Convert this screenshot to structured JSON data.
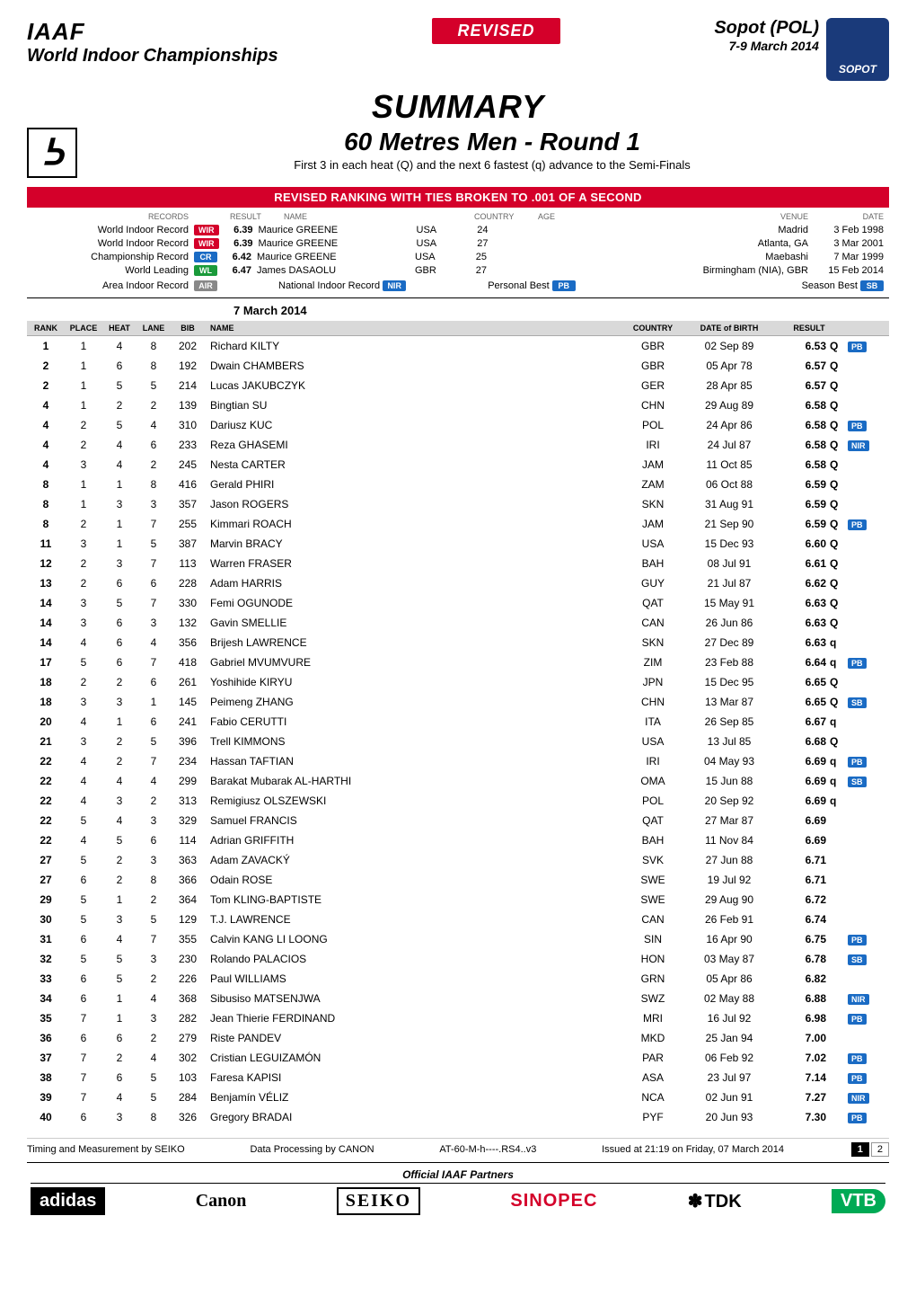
{
  "header": {
    "org": "IAAF",
    "event_series": "World Indoor Championships",
    "revised": "REVISED",
    "location": "Sopot (POL)",
    "dates": "7-9 March 2014",
    "logo_text": "SOPOT"
  },
  "title": "SUMMARY",
  "event": {
    "name": "60 Metres Men - Round 1",
    "note": "First 3 in each heat (Q) and the next 6 fastest (q) advance to the Semi-Finals"
  },
  "banner": "REVISED RANKING WITH TIES BROKEN TO .001 OF A SECOND",
  "records": {
    "hdr_records": "RECORDS",
    "hdr_result": "RESULT",
    "hdr_name": "NAME",
    "hdr_country": "COUNTRY",
    "hdr_age": "AGE",
    "hdr_venue": "VENUE",
    "hdr_date": "DATE",
    "lines": [
      {
        "label": "World Indoor Record",
        "pill": "WIR",
        "pill_class": "pill-red",
        "result": "6.39",
        "name": "Maurice GREENE",
        "ctry": "USA",
        "age": "24",
        "venue": "Madrid",
        "date": "3 Feb 1998"
      },
      {
        "label": "World Indoor Record",
        "pill": "WIR",
        "pill_class": "pill-red",
        "result": "6.39",
        "name": "Maurice GREENE",
        "ctry": "USA",
        "age": "27",
        "venue": "Atlanta, GA",
        "date": "3 Mar 2001"
      },
      {
        "label": "Championship Record",
        "pill": "CR",
        "pill_class": "pill-blue",
        "result": "6.42",
        "name": "Maurice GREENE",
        "ctry": "USA",
        "age": "25",
        "venue": "Maebashi",
        "date": "7 Mar 1999"
      },
      {
        "label": "World Leading",
        "pill": "WL",
        "pill_class": "pill-green",
        "result": "6.47",
        "name": "James DASAOLU",
        "ctry": "GBR",
        "age": "27",
        "venue": "Birmingham (NIA), GBR",
        "date": "15 Feb 2014"
      }
    ],
    "footer": {
      "air_label": "Area Indoor Record",
      "air_pill": "AIR",
      "nir_label": "National Indoor Record",
      "nir_pill": "NIR",
      "pb_label": "Personal Best",
      "pb_pill": "PB",
      "sb_label": "Season Best",
      "sb_pill": "SB"
    }
  },
  "comp_date": "7 March 2014",
  "cols": {
    "rank": "RANK",
    "place": "PLACE",
    "heat": "HEAT",
    "lane": "LANE",
    "bib": "BIB",
    "name": "NAME",
    "country": "COUNTRY",
    "dob": "DATE of BIRTH",
    "result": "RESULT"
  },
  "rows": [
    {
      "rank": "1",
      "place": "1",
      "heat": "4",
      "lane": "8",
      "bib": "202",
      "name": "Richard KILTY",
      "ctry": "GBR",
      "dob": "02 Sep 89",
      "res": "6.53",
      "q": "Q",
      "badge": "PB"
    },
    {
      "rank": "2",
      "place": "1",
      "heat": "6",
      "lane": "8",
      "bib": "192",
      "name": "Dwain CHAMBERS",
      "ctry": "GBR",
      "dob": "05 Apr 78",
      "res": "6.57",
      "q": "Q",
      "badge": ""
    },
    {
      "rank": "2",
      "place": "1",
      "heat": "5",
      "lane": "5",
      "bib": "214",
      "name": "Lucas JAKUBCZYK",
      "ctry": "GER",
      "dob": "28 Apr 85",
      "res": "6.57",
      "q": "Q",
      "badge": ""
    },
    {
      "rank": "4",
      "place": "1",
      "heat": "2",
      "lane": "2",
      "bib": "139",
      "name": "Bingtian SU",
      "ctry": "CHN",
      "dob": "29 Aug 89",
      "res": "6.58",
      "q": "Q",
      "badge": ""
    },
    {
      "rank": "4",
      "place": "2",
      "heat": "5",
      "lane": "4",
      "bib": "310",
      "name": "Dariusz KUC",
      "ctry": "POL",
      "dob": "24 Apr 86",
      "res": "6.58",
      "q": "Q",
      "badge": "PB"
    },
    {
      "rank": "4",
      "place": "2",
      "heat": "4",
      "lane": "6",
      "bib": "233",
      "name": "Reza GHASEMI",
      "ctry": "IRI",
      "dob": "24 Jul 87",
      "res": "6.58",
      "q": "Q",
      "badge": "NIR"
    },
    {
      "rank": "4",
      "place": "3",
      "heat": "4",
      "lane": "2",
      "bib": "245",
      "name": "Nesta CARTER",
      "ctry": "JAM",
      "dob": "11 Oct 85",
      "res": "6.58",
      "q": "Q",
      "badge": ""
    },
    {
      "rank": "8",
      "place": "1",
      "heat": "1",
      "lane": "8",
      "bib": "416",
      "name": "Gerald PHIRI",
      "ctry": "ZAM",
      "dob": "06 Oct 88",
      "res": "6.59",
      "q": "Q",
      "badge": ""
    },
    {
      "rank": "8",
      "place": "1",
      "heat": "3",
      "lane": "3",
      "bib": "357",
      "name": "Jason ROGERS",
      "ctry": "SKN",
      "dob": "31 Aug 91",
      "res": "6.59",
      "q": "Q",
      "badge": ""
    },
    {
      "rank": "8",
      "place": "2",
      "heat": "1",
      "lane": "7",
      "bib": "255",
      "name": "Kimmari ROACH",
      "ctry": "JAM",
      "dob": "21 Sep 90",
      "res": "6.59",
      "q": "Q",
      "badge": "PB"
    },
    {
      "rank": "11",
      "place": "3",
      "heat": "1",
      "lane": "5",
      "bib": "387",
      "name": "Marvin BRACY",
      "ctry": "USA",
      "dob": "15 Dec 93",
      "res": "6.60",
      "q": "Q",
      "badge": ""
    },
    {
      "rank": "12",
      "place": "2",
      "heat": "3",
      "lane": "7",
      "bib": "113",
      "name": "Warren FRASER",
      "ctry": "BAH",
      "dob": "08 Jul 91",
      "res": "6.61",
      "q": "Q",
      "badge": ""
    },
    {
      "rank": "13",
      "place": "2",
      "heat": "6",
      "lane": "6",
      "bib": "228",
      "name": "Adam HARRIS",
      "ctry": "GUY",
      "dob": "21 Jul 87",
      "res": "6.62",
      "q": "Q",
      "badge": ""
    },
    {
      "rank": "14",
      "place": "3",
      "heat": "5",
      "lane": "7",
      "bib": "330",
      "name": "Femi OGUNODE",
      "ctry": "QAT",
      "dob": "15 May 91",
      "res": "6.63",
      "q": "Q",
      "badge": ""
    },
    {
      "rank": "14",
      "place": "3",
      "heat": "6",
      "lane": "3",
      "bib": "132",
      "name": "Gavin SMELLIE",
      "ctry": "CAN",
      "dob": "26 Jun 86",
      "res": "6.63",
      "q": "Q",
      "badge": ""
    },
    {
      "rank": "14",
      "place": "4",
      "heat": "6",
      "lane": "4",
      "bib": "356",
      "name": "Brijesh LAWRENCE",
      "ctry": "SKN",
      "dob": "27 Dec 89",
      "res": "6.63",
      "q": "q",
      "badge": ""
    },
    {
      "rank": "17",
      "place": "5",
      "heat": "6",
      "lane": "7",
      "bib": "418",
      "name": "Gabriel MVUMVURE",
      "ctry": "ZIM",
      "dob": "23 Feb 88",
      "res": "6.64",
      "q": "q",
      "badge": "PB"
    },
    {
      "rank": "18",
      "place": "2",
      "heat": "2",
      "lane": "6",
      "bib": "261",
      "name": "Yoshihide KIRYU",
      "ctry": "JPN",
      "dob": "15 Dec 95",
      "res": "6.65",
      "q": "Q",
      "badge": ""
    },
    {
      "rank": "18",
      "place": "3",
      "heat": "3",
      "lane": "1",
      "bib": "145",
      "name": "Peimeng ZHANG",
      "ctry": "CHN",
      "dob": "13 Mar 87",
      "res": "6.65",
      "q": "Q",
      "badge": "SB"
    },
    {
      "rank": "20",
      "place": "4",
      "heat": "1",
      "lane": "6",
      "bib": "241",
      "name": "Fabio CERUTTI",
      "ctry": "ITA",
      "dob": "26 Sep 85",
      "res": "6.67",
      "q": "q",
      "badge": ""
    },
    {
      "rank": "21",
      "place": "3",
      "heat": "2",
      "lane": "5",
      "bib": "396",
      "name": "Trell KIMMONS",
      "ctry": "USA",
      "dob": "13 Jul 85",
      "res": "6.68",
      "q": "Q",
      "badge": ""
    },
    {
      "rank": "22",
      "place": "4",
      "heat": "2",
      "lane": "7",
      "bib": "234",
      "name": "Hassan TAFTIAN",
      "ctry": "IRI",
      "dob": "04 May 93",
      "res": "6.69",
      "q": "q",
      "badge": "PB"
    },
    {
      "rank": "22",
      "place": "4",
      "heat": "4",
      "lane": "4",
      "bib": "299",
      "name": "Barakat Mubarak AL-HARTHI",
      "ctry": "OMA",
      "dob": "15 Jun 88",
      "res": "6.69",
      "q": "q",
      "badge": "SB"
    },
    {
      "rank": "22",
      "place": "4",
      "heat": "3",
      "lane": "2",
      "bib": "313",
      "name": "Remigiusz OLSZEWSKI",
      "ctry": "POL",
      "dob": "20 Sep 92",
      "res": "6.69",
      "q": "q",
      "badge": ""
    },
    {
      "rank": "22",
      "place": "5",
      "heat": "4",
      "lane": "3",
      "bib": "329",
      "name": "Samuel FRANCIS",
      "ctry": "QAT",
      "dob": "27 Mar 87",
      "res": "6.69",
      "q": "",
      "badge": ""
    },
    {
      "rank": "22",
      "place": "4",
      "heat": "5",
      "lane": "6",
      "bib": "114",
      "name": "Adrian GRIFFITH",
      "ctry": "BAH",
      "dob": "11 Nov 84",
      "res": "6.69",
      "q": "",
      "badge": ""
    },
    {
      "rank": "27",
      "place": "5",
      "heat": "2",
      "lane": "3",
      "bib": "363",
      "name": "Adam ZAVACKÝ",
      "ctry": "SVK",
      "dob": "27 Jun 88",
      "res": "6.71",
      "q": "",
      "badge": ""
    },
    {
      "rank": "27",
      "place": "6",
      "heat": "2",
      "lane": "8",
      "bib": "366",
      "name": "Odain ROSE",
      "ctry": "SWE",
      "dob": "19 Jul 92",
      "res": "6.71",
      "q": "",
      "badge": ""
    },
    {
      "rank": "29",
      "place": "5",
      "heat": "1",
      "lane": "2",
      "bib": "364",
      "name": "Tom KLING-BAPTISTE",
      "ctry": "SWE",
      "dob": "29 Aug 90",
      "res": "6.72",
      "q": "",
      "badge": ""
    },
    {
      "rank": "30",
      "place": "5",
      "heat": "3",
      "lane": "5",
      "bib": "129",
      "name": "T.J. LAWRENCE",
      "ctry": "CAN",
      "dob": "26 Feb 91",
      "res": "6.74",
      "q": "",
      "badge": ""
    },
    {
      "rank": "31",
      "place": "6",
      "heat": "4",
      "lane": "7",
      "bib": "355",
      "name": "Calvin KANG LI LOONG",
      "ctry": "SIN",
      "dob": "16 Apr 90",
      "res": "6.75",
      "q": "",
      "badge": "PB"
    },
    {
      "rank": "32",
      "place": "5",
      "heat": "5",
      "lane": "3",
      "bib": "230",
      "name": "Rolando PALACIOS",
      "ctry": "HON",
      "dob": "03 May 87",
      "res": "6.78",
      "q": "",
      "badge": "SB"
    },
    {
      "rank": "33",
      "place": "6",
      "heat": "5",
      "lane": "2",
      "bib": "226",
      "name": "Paul WILLIAMS",
      "ctry": "GRN",
      "dob": "05 Apr 86",
      "res": "6.82",
      "q": "",
      "badge": ""
    },
    {
      "rank": "34",
      "place": "6",
      "heat": "1",
      "lane": "4",
      "bib": "368",
      "name": "Sibusiso MATSENJWA",
      "ctry": "SWZ",
      "dob": "02 May 88",
      "res": "6.88",
      "q": "",
      "badge": "NIR"
    },
    {
      "rank": "35",
      "place": "7",
      "heat": "1",
      "lane": "3",
      "bib": "282",
      "name": "Jean Thierie FERDINAND",
      "ctry": "MRI",
      "dob": "16 Jul 92",
      "res": "6.98",
      "q": "",
      "badge": "PB"
    },
    {
      "rank": "36",
      "place": "6",
      "heat": "6",
      "lane": "2",
      "bib": "279",
      "name": "Riste PANDEV",
      "ctry": "MKD",
      "dob": "25 Jan 94",
      "res": "7.00",
      "q": "",
      "badge": ""
    },
    {
      "rank": "37",
      "place": "7",
      "heat": "2",
      "lane": "4",
      "bib": "302",
      "name": "Cristian LEGUIZAMÓN",
      "ctry": "PAR",
      "dob": "06 Feb 92",
      "res": "7.02",
      "q": "",
      "badge": "PB"
    },
    {
      "rank": "38",
      "place": "7",
      "heat": "6",
      "lane": "5",
      "bib": "103",
      "name": "Faresa KAPISI",
      "ctry": "ASA",
      "dob": "23 Jul 97",
      "res": "7.14",
      "q": "",
      "badge": "PB"
    },
    {
      "rank": "39",
      "place": "7",
      "heat": "4",
      "lane": "5",
      "bib": "284",
      "name": "Benjamín VÉLIZ",
      "ctry": "NCA",
      "dob": "02 Jun 91",
      "res": "7.27",
      "q": "",
      "badge": "NIR"
    },
    {
      "rank": "40",
      "place": "6",
      "heat": "3",
      "lane": "8",
      "bib": "326",
      "name": "Gregory BRADAI",
      "ctry": "PYF",
      "dob": "20 Jun 93",
      "res": "7.30",
      "q": "",
      "badge": "PB"
    }
  ],
  "footer": {
    "timing": "Timing and Measurement by SEIKO",
    "processing": "Data Processing by CANON",
    "code": "AT-60-M-h----.RS4..v3",
    "issued": "Issued at 21:19 on Friday, 07 March 2014",
    "page_current": "1",
    "page_total": "2"
  },
  "sponsors": {
    "label": "Official IAAF Partners",
    "list": [
      "adidas",
      "Canon",
      "SEIKO",
      "SINOPEC",
      "TDK",
      "VTB"
    ]
  }
}
